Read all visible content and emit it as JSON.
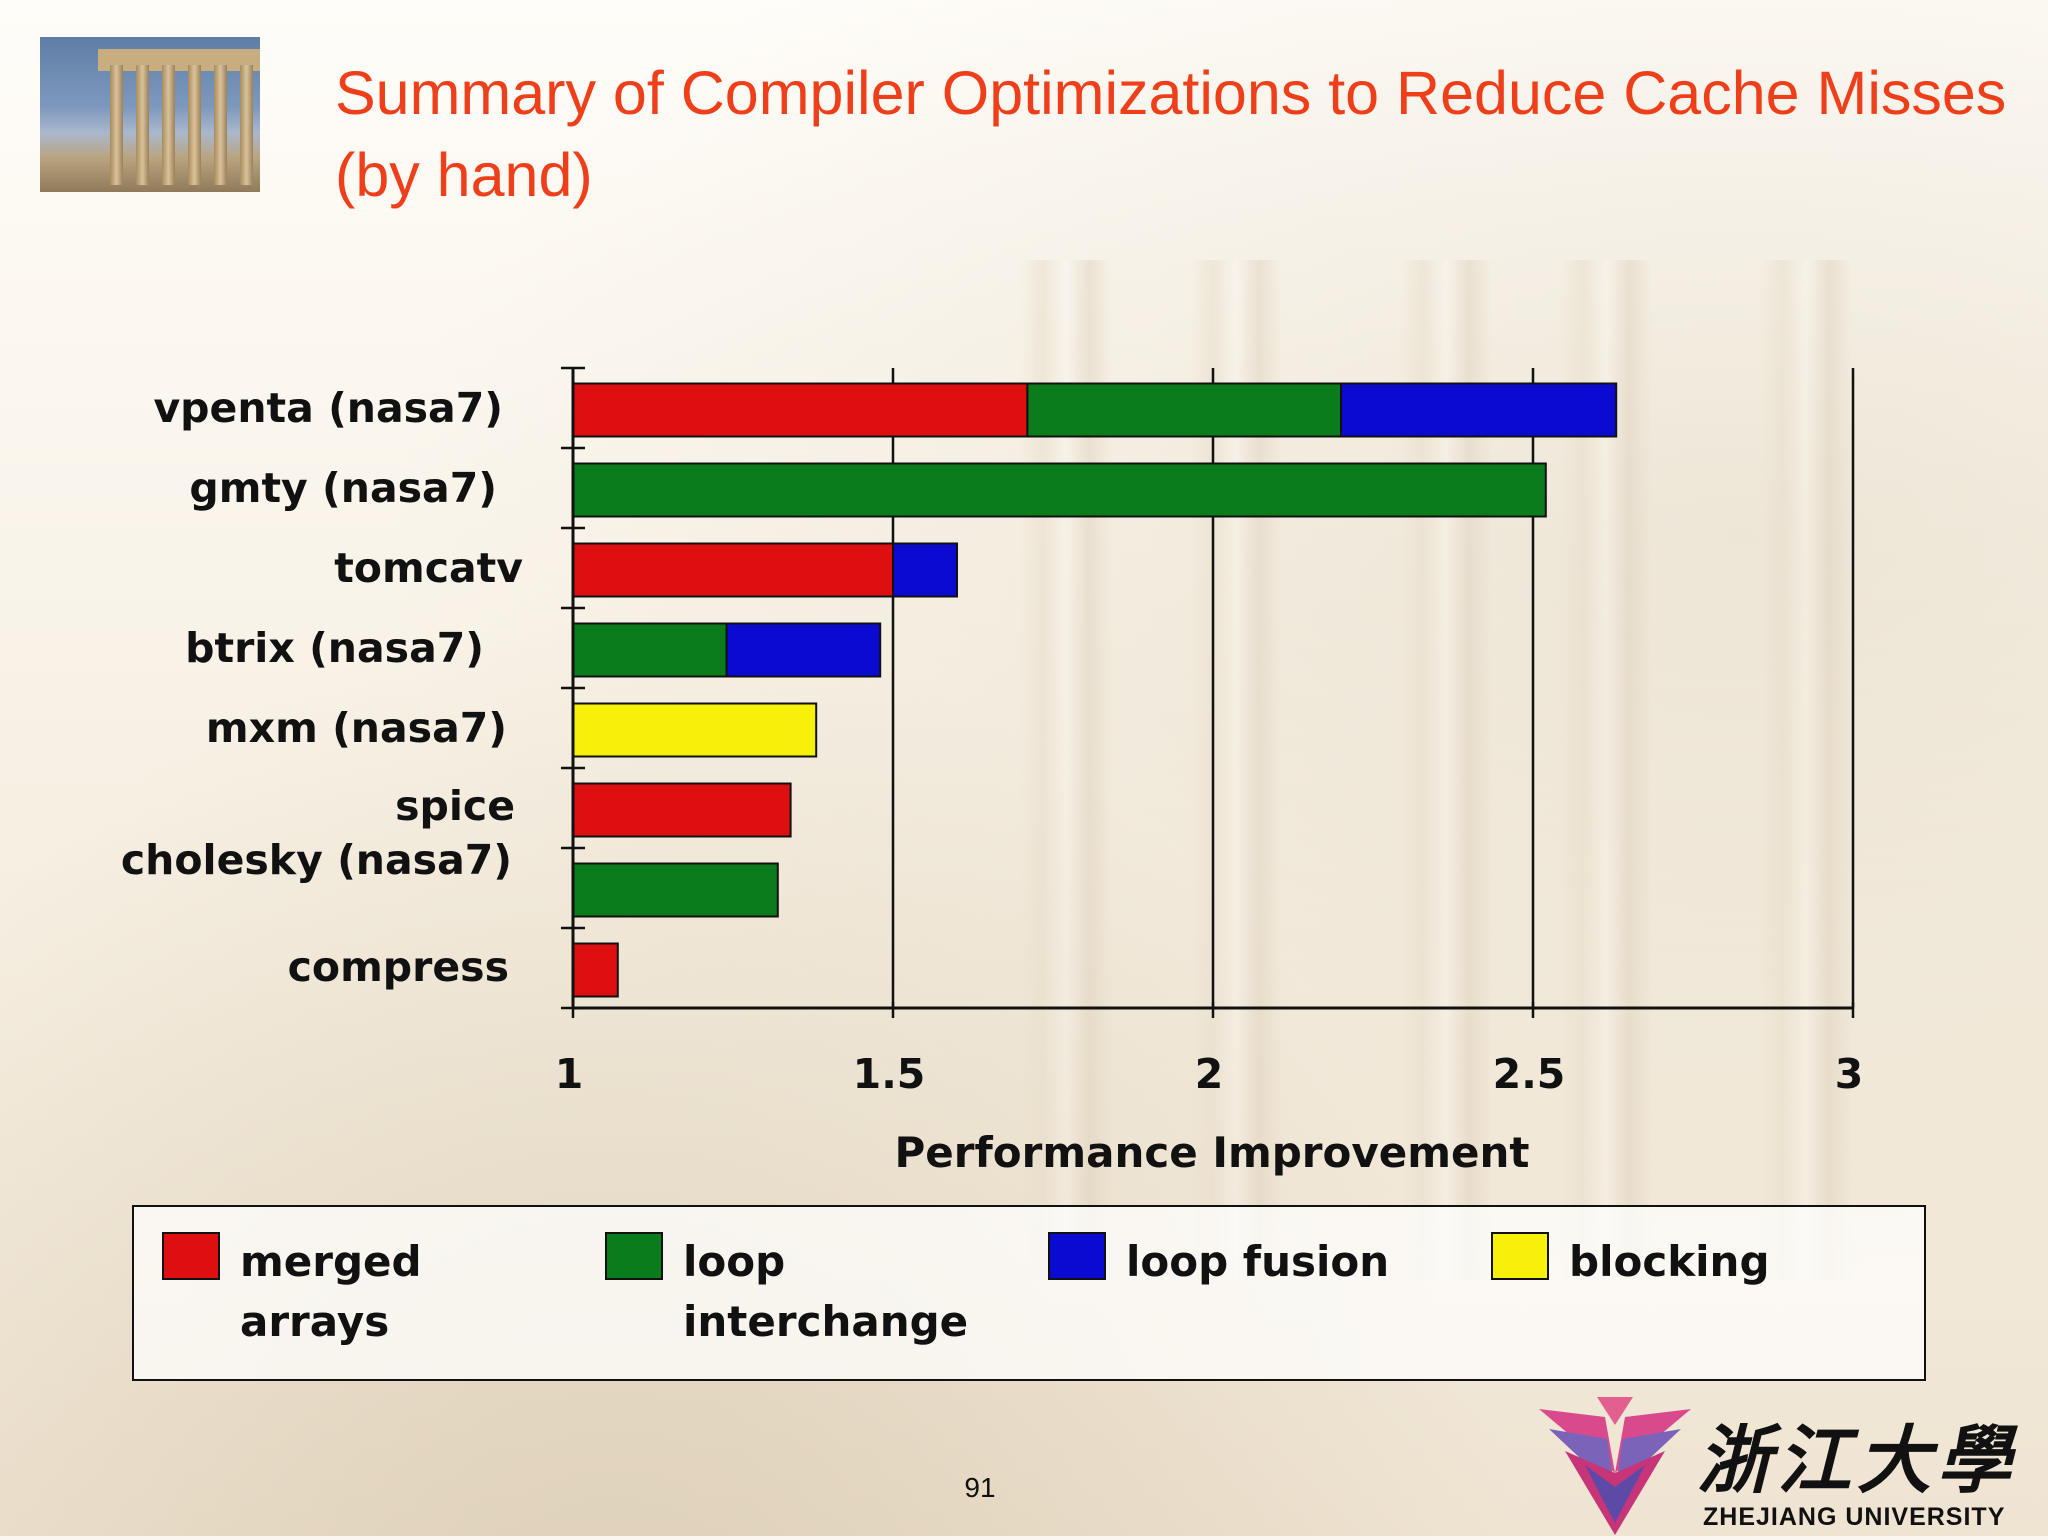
{
  "slide": {
    "title": "Summary of Compiler Optimizations to Reduce Cache Misses (by hand)",
    "page_number": "91"
  },
  "logo": {
    "name_cn": "浙江大學",
    "name_en": "ZHEJIANG UNIVERSITY"
  },
  "chart_data": {
    "type": "bar",
    "orientation": "horizontal",
    "stacked": true,
    "xlabel": "Performance Improvement",
    "ylabel": "",
    "xlim": [
      1,
      3
    ],
    "x_ticks": [
      "1",
      "1.5",
      "2",
      "2.5",
      "3"
    ],
    "grid": "vertical lines at 1.5, 2, 2.5, 3",
    "category_labels": [
      "vpenta (nasa7)",
      "gmty (nasa7)",
      "tomcatv",
      "btrix (nasa7)",
      "mxm (nasa7)",
      "spice",
      "cholesky (nasa7)",
      "compress"
    ],
    "bars": [
      {
        "category": 0,
        "segments": [
          {
            "series": "merged arrays",
            "from": 1,
            "to": 1.71
          },
          {
            "series": "loop interchange",
            "from": 1.71,
            "to": 2.2
          },
          {
            "series": "loop fusion",
            "from": 2.2,
            "to": 2.63
          }
        ]
      },
      {
        "category": 1,
        "segments": [
          {
            "series": "loop interchange",
            "from": 1,
            "to": 2.52
          }
        ]
      },
      {
        "category": 2,
        "segments": [
          {
            "series": "merged arrays",
            "from": 1,
            "to": 1.5
          },
          {
            "series": "loop fusion",
            "from": 1.5,
            "to": 1.6
          }
        ]
      },
      {
        "category": 3,
        "segments": [
          {
            "series": "loop interchange",
            "from": 1,
            "to": 1.24
          },
          {
            "series": "loop fusion",
            "from": 1.24,
            "to": 1.48
          }
        ]
      },
      {
        "category": 4,
        "segments": [
          {
            "series": "blocking",
            "from": 1,
            "to": 1.38
          }
        ]
      },
      {
        "category": 5,
        "segments": [
          {
            "series": "merged arrays",
            "from": 1,
            "to": 1.34
          }
        ]
      },
      {
        "category": 6,
        "segments": [
          {
            "series": "loop interchange",
            "from": 1,
            "to": 1.32
          }
        ]
      },
      {
        "category": 7,
        "segments": [
          {
            "series": "merged arrays",
            "from": 1,
            "to": 1.07
          }
        ]
      }
    ],
    "legend": {
      "placement": "bottom",
      "entries": [
        {
          "name": "merged arrays",
          "color": "#dd0f10"
        },
        {
          "name": "loop interchange",
          "color": "#0b7c1c"
        },
        {
          "name": "loop fusion",
          "color": "#0a0ad2"
        },
        {
          "name": "blocking",
          "color": "#f7f00a"
        }
      ],
      "labels": [
        [
          "merged",
          "arrays"
        ],
        [
          "loop",
          "interchange"
        ],
        [
          "loop fusion"
        ],
        [
          "blocking"
        ]
      ]
    }
  }
}
